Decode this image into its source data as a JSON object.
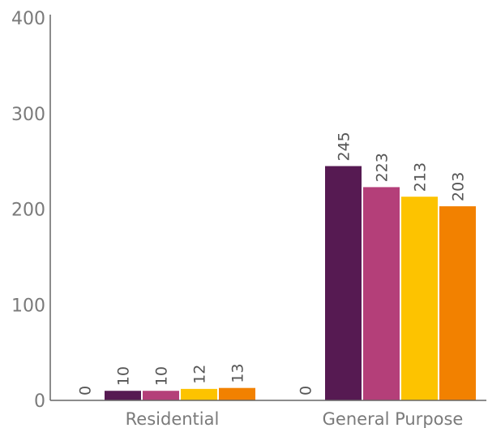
{
  "chart_data": {
    "type": "bar",
    "categories": [
      "Residential",
      "General Purpose"
    ],
    "series": [
      {
        "values": [
          0,
          0
        ],
        "color": "#5b1f57"
      },
      {
        "values": [
          10,
          245
        ],
        "color": "#561a52"
      },
      {
        "values": [
          10,
          223
        ],
        "color": "#b43f79"
      },
      {
        "values": [
          12,
          213
        ],
        "color": "#fdc300"
      },
      {
        "values": [
          13,
          203
        ],
        "color": "#f28100"
      }
    ],
    "yticks": [
      0,
      100,
      200,
      300,
      400
    ],
    "ylim": [
      0,
      400
    ],
    "data_labels": true,
    "grid": false,
    "legend": "none"
  }
}
